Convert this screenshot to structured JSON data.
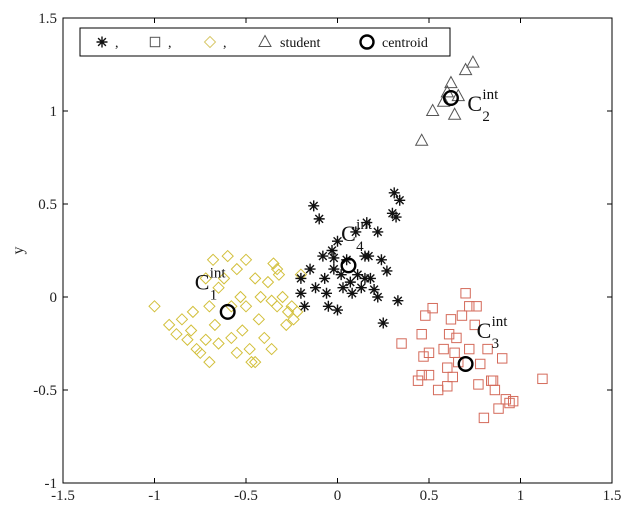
{
  "chart_data": {
    "type": "scatter",
    "title": "",
    "xlabel": "",
    "ylabel": "y",
    "xlim": [
      -1.5,
      1.5
    ],
    "ylim": [
      -1,
      1.5
    ],
    "xticks": [
      "-1.5",
      "-1",
      "-0.5",
      "0",
      "0.5",
      "1",
      "1.5"
    ],
    "yticks": [
      "-1",
      "-0.5",
      "0",
      "0.5",
      "1",
      "1.5"
    ],
    "grid": false,
    "legend_position": "top",
    "legend": [
      {
        "marker": "asterisk",
        "label": ",",
        "color": "#111111"
      },
      {
        "marker": "square",
        "label": ",",
        "color": "#555555"
      },
      {
        "marker": "diamond",
        "label": ",",
        "color": "#d8c86a"
      },
      {
        "marker": "triangle",
        "label": "student",
        "color": "#555555"
      },
      {
        "marker": "circle",
        "label": "centroid",
        "color": "#000000"
      }
    ],
    "series": [
      {
        "marker": "diamond",
        "color": "#d2bf3a",
        "points": [
          [
            -1.0,
            -0.05
          ],
          [
            -0.92,
            -0.15
          ],
          [
            -0.88,
            -0.2
          ],
          [
            -0.85,
            -0.12
          ],
          [
            -0.82,
            -0.23
          ],
          [
            -0.8,
            -0.18
          ],
          [
            -0.79,
            -0.08
          ],
          [
            -0.77,
            -0.28
          ],
          [
            -0.75,
            -0.3
          ],
          [
            -0.72,
            0.1
          ],
          [
            -0.72,
            -0.23
          ],
          [
            -0.7,
            -0.05
          ],
          [
            -0.7,
            -0.35
          ],
          [
            -0.68,
            0.2
          ],
          [
            -0.67,
            -0.15
          ],
          [
            -0.65,
            0.05
          ],
          [
            -0.65,
            -0.25
          ],
          [
            -0.62,
            0.1
          ],
          [
            -0.6,
            0.22
          ],
          [
            -0.58,
            -0.05
          ],
          [
            -0.58,
            -0.22
          ],
          [
            -0.55,
            0.15
          ],
          [
            -0.55,
            -0.3
          ],
          [
            -0.53,
            0.0
          ],
          [
            -0.52,
            -0.18
          ],
          [
            -0.5,
            0.2
          ],
          [
            -0.5,
            -0.05
          ],
          [
            -0.48,
            -0.28
          ],
          [
            -0.47,
            -0.35
          ],
          [
            -0.45,
            0.1
          ],
          [
            -0.43,
            -0.12
          ],
          [
            -0.42,
            0.0
          ],
          [
            -0.4,
            -0.22
          ],
          [
            -0.38,
            0.08
          ],
          [
            -0.36,
            -0.28
          ],
          [
            -0.35,
            0.18
          ],
          [
            -0.33,
            -0.05
          ],
          [
            -0.32,
            0.12
          ],
          [
            -0.3,
            0.0
          ],
          [
            -0.28,
            -0.15
          ],
          [
            -0.27,
            -0.08
          ],
          [
            -0.25,
            -0.05
          ],
          [
            -0.24,
            -0.12
          ],
          [
            -0.22,
            -0.08
          ],
          [
            -0.2,
            0.12
          ],
          [
            -0.33,
            0.15
          ],
          [
            -0.36,
            -0.02
          ],
          [
            -0.45,
            -0.35
          ]
        ]
      },
      {
        "marker": "asterisk",
        "color": "#111111",
        "points": [
          [
            -0.2,
            0.1
          ],
          [
            -0.2,
            0.02
          ],
          [
            -0.18,
            -0.05
          ],
          [
            -0.15,
            0.15
          ],
          [
            -0.13,
            0.49
          ],
          [
            -0.12,
            0.05
          ],
          [
            -0.1,
            0.42
          ],
          [
            -0.08,
            0.22
          ],
          [
            -0.07,
            0.1
          ],
          [
            -0.06,
            0.02
          ],
          [
            -0.05,
            -0.05
          ],
          [
            -0.03,
            0.25
          ],
          [
            -0.02,
            0.15
          ],
          [
            0.0,
            0.3
          ],
          [
            0.0,
            -0.07
          ],
          [
            0.02,
            0.12
          ],
          [
            0.03,
            0.05
          ],
          [
            0.05,
            0.2
          ],
          [
            0.07,
            0.08
          ],
          [
            0.08,
            0.02
          ],
          [
            0.1,
            0.35
          ],
          [
            0.11,
            0.12
          ],
          [
            0.13,
            0.05
          ],
          [
            0.15,
            0.22
          ],
          [
            0.16,
            0.4
          ],
          [
            0.18,
            0.1
          ],
          [
            0.2,
            0.04
          ],
          [
            0.22,
            0.35
          ],
          [
            0.24,
            0.2
          ],
          [
            0.25,
            -0.14
          ],
          [
            0.27,
            0.14
          ],
          [
            0.3,
            0.45
          ],
          [
            0.31,
            0.56
          ],
          [
            0.32,
            0.43
          ],
          [
            0.33,
            -0.02
          ],
          [
            0.34,
            0.52
          ],
          [
            0.17,
            0.22
          ],
          [
            -0.02,
            0.21
          ],
          [
            0.22,
            0.0
          ],
          [
            0.15,
            0.1
          ]
        ]
      },
      {
        "marker": "square",
        "color": "#d46a5a",
        "points": [
          [
            0.35,
            -0.25
          ],
          [
            0.44,
            -0.45
          ],
          [
            0.46,
            -0.2
          ],
          [
            0.46,
            -0.42
          ],
          [
            0.47,
            -0.32
          ],
          [
            0.48,
            -0.1
          ],
          [
            0.5,
            -0.3
          ],
          [
            0.5,
            -0.42
          ],
          [
            0.52,
            -0.06
          ],
          [
            0.58,
            -0.28
          ],
          [
            0.6,
            -0.38
          ],
          [
            0.6,
            -0.48
          ],
          [
            0.61,
            -0.2
          ],
          [
            0.63,
            -0.43
          ],
          [
            0.64,
            -0.3
          ],
          [
            0.65,
            -0.22
          ],
          [
            0.66,
            -0.35
          ],
          [
            0.68,
            -0.1
          ],
          [
            0.7,
            0.02
          ],
          [
            0.72,
            -0.28
          ],
          [
            0.75,
            -0.15
          ],
          [
            0.76,
            -0.05
          ],
          [
            0.77,
            -0.47
          ],
          [
            0.78,
            -0.36
          ],
          [
            0.8,
            -0.65
          ],
          [
            0.82,
            -0.28
          ],
          [
            0.84,
            -0.45
          ],
          [
            0.86,
            -0.5
          ],
          [
            0.88,
            -0.6
          ],
          [
            0.9,
            -0.33
          ],
          [
            0.92,
            -0.55
          ],
          [
            0.94,
            -0.57
          ],
          [
            0.96,
            -0.56
          ],
          [
            1.12,
            -0.44
          ],
          [
            0.55,
            -0.5
          ],
          [
            0.62,
            -0.12
          ],
          [
            0.72,
            -0.05
          ],
          [
            0.85,
            -0.45
          ]
        ]
      },
      {
        "marker": "triangle",
        "color": "#555555",
        "points": [
          [
            0.46,
            0.84
          ],
          [
            0.52,
            1.0
          ],
          [
            0.58,
            1.05
          ],
          [
            0.6,
            1.1
          ],
          [
            0.62,
            1.15
          ],
          [
            0.64,
            0.98
          ],
          [
            0.66,
            1.08
          ],
          [
            0.7,
            1.22
          ],
          [
            0.74,
            1.26
          ]
        ]
      }
    ],
    "centroids": [
      {
        "name": "C",
        "sup": "int",
        "sub": "1",
        "x": -0.6,
        "y": -0.08,
        "label_x": -0.78,
        "label_y": 0.04
      },
      {
        "name": "C",
        "sup": "int",
        "sub": "2",
        "x": 0.62,
        "y": 1.07,
        "label_x": 0.71,
        "label_y": 1.0
      },
      {
        "name": "C",
        "sup": "int",
        "sub": "3",
        "x": 0.7,
        "y": -0.36,
        "label_x": 0.76,
        "label_y": -0.22
      },
      {
        "name": "C",
        "sup": "int",
        "sub": "4",
        "x": 0.06,
        "y": 0.17,
        "label_x": 0.02,
        "label_y": 0.3
      }
    ]
  }
}
